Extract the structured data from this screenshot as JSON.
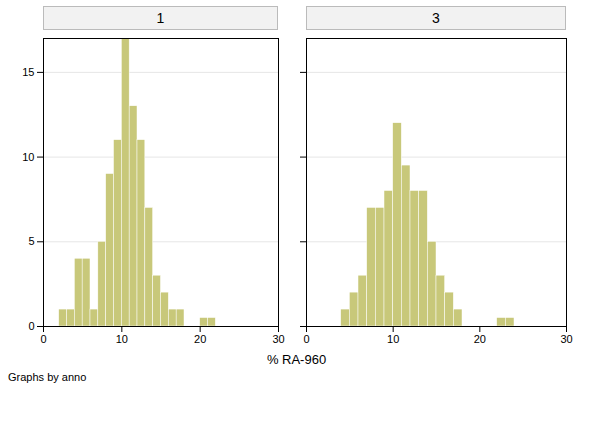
{
  "chart_data": [
    {
      "type": "histogram",
      "title": "1",
      "xlabel": "% RA-960",
      "annotations": [
        "Graphs by anno"
      ],
      "bins": [
        2,
        3,
        4,
        5,
        6,
        7,
        8,
        9,
        10,
        11,
        12,
        13,
        14,
        15,
        16,
        17,
        18,
        19,
        20,
        21,
        22
      ],
      "values": [
        1,
        1,
        4,
        4,
        1,
        5,
        9,
        11,
        17,
        13,
        11,
        7,
        3,
        2,
        1,
        1,
        0,
        0,
        0.5,
        0.5
      ],
      "color": "#c8c87a",
      "xlim": [
        0,
        30
      ],
      "xticks": [
        0,
        10,
        20,
        30
      ],
      "ylim": [
        0,
        17
      ],
      "yticks": [
        0,
        5,
        10,
        15
      ],
      "grid": true
    },
    {
      "type": "histogram",
      "title": "3",
      "bins": [
        4,
        5,
        6,
        7,
        8,
        9,
        10,
        11,
        12,
        13,
        14,
        15,
        16,
        17,
        18,
        19,
        20,
        21,
        22,
        23,
        24
      ],
      "values": [
        1,
        2,
        3,
        7,
        7,
        8,
        12,
        9.5,
        8,
        8,
        5,
        3,
        2,
        1,
        0,
        0,
        0,
        0,
        0.5,
        0.5
      ],
      "color": "#c8c87a",
      "xlim": [
        0,
        30
      ],
      "xticks": [
        0,
        10,
        20,
        30
      ],
      "ylim": [
        0,
        17
      ],
      "yticks": [
        0,
        5,
        10,
        15
      ],
      "grid": true,
      "tick_labels": "x"
    }
  ]
}
